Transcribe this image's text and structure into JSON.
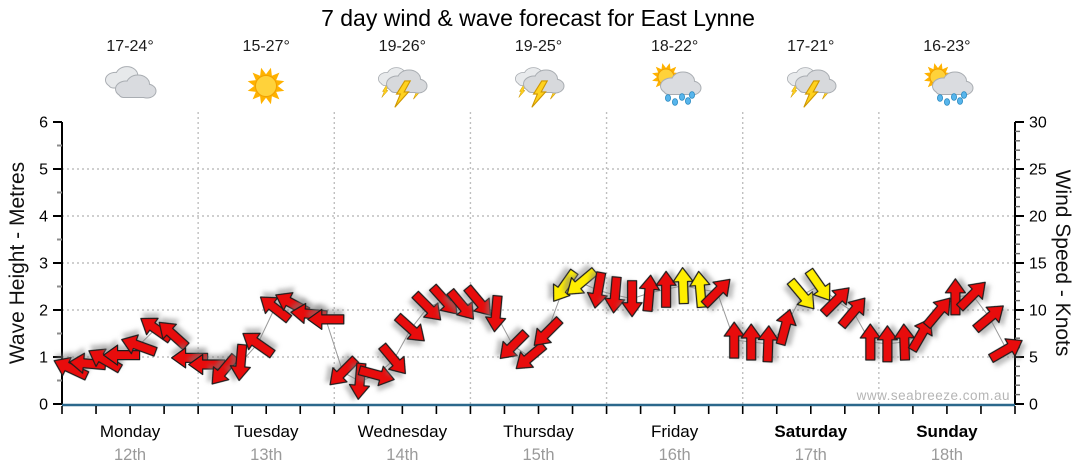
{
  "title": "7 day wind & wave forecast for East Lynne",
  "watermark": "www.seabreeze.com.au",
  "chart_data": {
    "type": "scatter",
    "subtype": "wind-arrow-forecast",
    "title": "7 day wind & wave forecast for East Lynne",
    "y_left": {
      "label": "Wave Height - Metres",
      "min": 0,
      "max": 6,
      "ticks": [
        0,
        1,
        2,
        3,
        4,
        5,
        6
      ]
    },
    "y_right": {
      "label": "Wind Speed - Knots",
      "min": 0,
      "max": 30,
      "ticks": [
        0,
        5,
        10,
        15,
        20,
        25,
        30
      ]
    },
    "grid": "horizontal dotted at 5,10,15,20,25 knots; dotted vertical day separators",
    "legend": "none",
    "days": [
      {
        "name": "Monday",
        "date": "12th",
        "temp": "17-24°",
        "icon": "cloudy",
        "bold": false
      },
      {
        "name": "Tuesday",
        "date": "13th",
        "temp": "15-27°",
        "icon": "sunny",
        "bold": false
      },
      {
        "name": "Wednesday",
        "date": "14th",
        "temp": "19-26°",
        "icon": "storm",
        "bold": false
      },
      {
        "name": "Thursday",
        "date": "15th",
        "temp": "19-25°",
        "icon": "storm",
        "bold": false
      },
      {
        "name": "Friday",
        "date": "16th",
        "temp": "18-22°",
        "icon": "sun-rain",
        "bold": false
      },
      {
        "name": "Saturday",
        "date": "17th",
        "temp": "17-21°",
        "icon": "storm",
        "bold": true
      },
      {
        "name": "Sunday",
        "date": "18th",
        "temp": "16-23°",
        "icon": "sun-rain",
        "bold": true
      }
    ],
    "points_per_day": 8,
    "point_format": "[wind_speed_knots, arrow_direction_deg_clockwise_from_east, color r=red y=yellow]",
    "points": [
      [
        3.8,
        205,
        "r"
      ],
      [
        4.3,
        185,
        "r"
      ],
      [
        4.7,
        210,
        "r"
      ],
      [
        5.2,
        180,
        "r"
      ],
      [
        6.2,
        200,
        "r"
      ],
      [
        8.0,
        215,
        "r"
      ],
      [
        7.4,
        222,
        "r"
      ],
      [
        4.9,
        180,
        "r"
      ],
      [
        4.2,
        180,
        "r"
      ],
      [
        3.6,
        130,
        "r"
      ],
      [
        4.4,
        95,
        "r"
      ],
      [
        6.4,
        215,
        "r"
      ],
      [
        10.2,
        218,
        "r"
      ],
      [
        10.7,
        208,
        "r"
      ],
      [
        9.6,
        185,
        "r"
      ],
      [
        9.0,
        180,
        "r"
      ],
      [
        3.4,
        135,
        "r"
      ],
      [
        2.4,
        95,
        "r"
      ],
      [
        3.1,
        15,
        "r"
      ],
      [
        4.7,
        50,
        "r"
      ],
      [
        8.0,
        42,
        "r"
      ],
      [
        10.3,
        45,
        "r"
      ],
      [
        11.0,
        48,
        "r"
      ],
      [
        10.5,
        50,
        "r"
      ],
      [
        10.9,
        50,
        "r"
      ],
      [
        9.6,
        95,
        "r"
      ],
      [
        6.2,
        135,
        "r"
      ],
      [
        5.0,
        140,
        "r"
      ],
      [
        7.6,
        135,
        "r"
      ],
      [
        12.5,
        125,
        "y"
      ],
      [
        12.9,
        140,
        "y"
      ],
      [
        12.1,
        100,
        "r"
      ],
      [
        11.6,
        95,
        "r"
      ],
      [
        11.2,
        90,
        "r"
      ],
      [
        11.8,
        275,
        "r"
      ],
      [
        12.2,
        270,
        "r"
      ],
      [
        12.6,
        268,
        "y"
      ],
      [
        12.2,
        265,
        "y"
      ],
      [
        11.9,
        315,
        "r"
      ],
      [
        6.8,
        270,
        "r"
      ],
      [
        6.6,
        270,
        "r"
      ],
      [
        6.4,
        272,
        "r"
      ],
      [
        8.2,
        285,
        "r"
      ],
      [
        11.6,
        50,
        "y"
      ],
      [
        12.6,
        55,
        "y"
      ],
      [
        11.0,
        315,
        "r"
      ],
      [
        9.8,
        310,
        "r"
      ],
      [
        6.6,
        270,
        "r"
      ],
      [
        6.4,
        270,
        "r"
      ],
      [
        6.6,
        268,
        "r"
      ],
      [
        7.4,
        300,
        "r"
      ],
      [
        9.8,
        310,
        "r"
      ],
      [
        11.4,
        270,
        "r"
      ],
      [
        11.6,
        315,
        "r"
      ],
      [
        9.2,
        320,
        "r"
      ],
      [
        5.8,
        330,
        "r"
      ]
    ],
    "colors": {
      "arrow_red": "#e80c0c",
      "arrow_yellow": "#ffee00",
      "arrow_outline": "#1c1c1c",
      "bottom_axis": "#2b688c",
      "grid": "#bfbfbf",
      "date_text": "#9a9a9a",
      "minor_tick": "#8c8c8c"
    }
  }
}
